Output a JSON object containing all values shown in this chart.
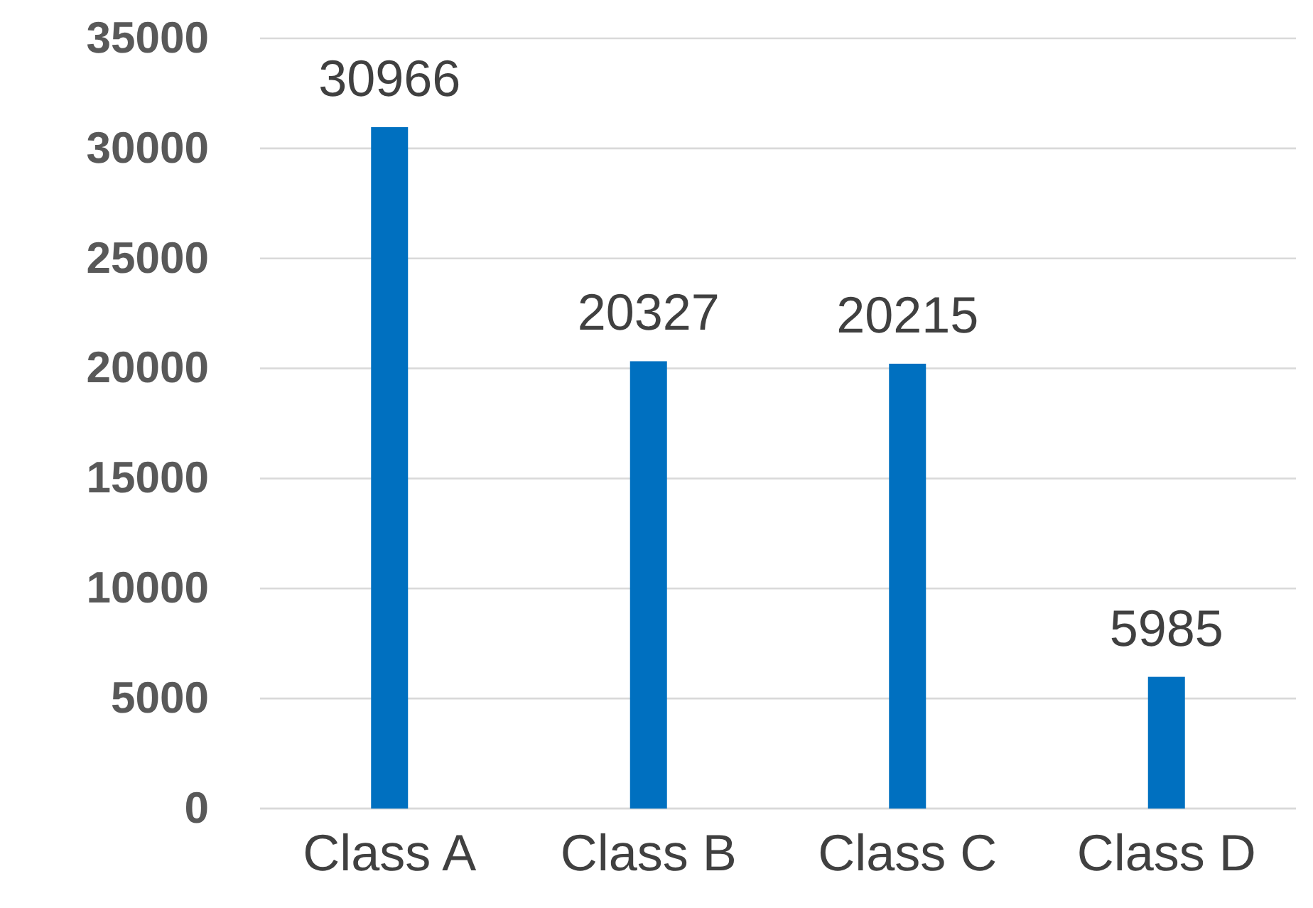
{
  "chart_data": {
    "type": "bar",
    "categories": [
      "Class A",
      "Class B",
      "Class C",
      "Class D"
    ],
    "values": [
      30966,
      20327,
      20215,
      5985
    ],
    "color": "#0070c0",
    "ylim": [
      0,
      35000
    ],
    "yticks": [
      0,
      5000,
      10000,
      15000,
      20000,
      25000,
      30000,
      35000
    ],
    "grid": "y",
    "data_labels": true
  }
}
